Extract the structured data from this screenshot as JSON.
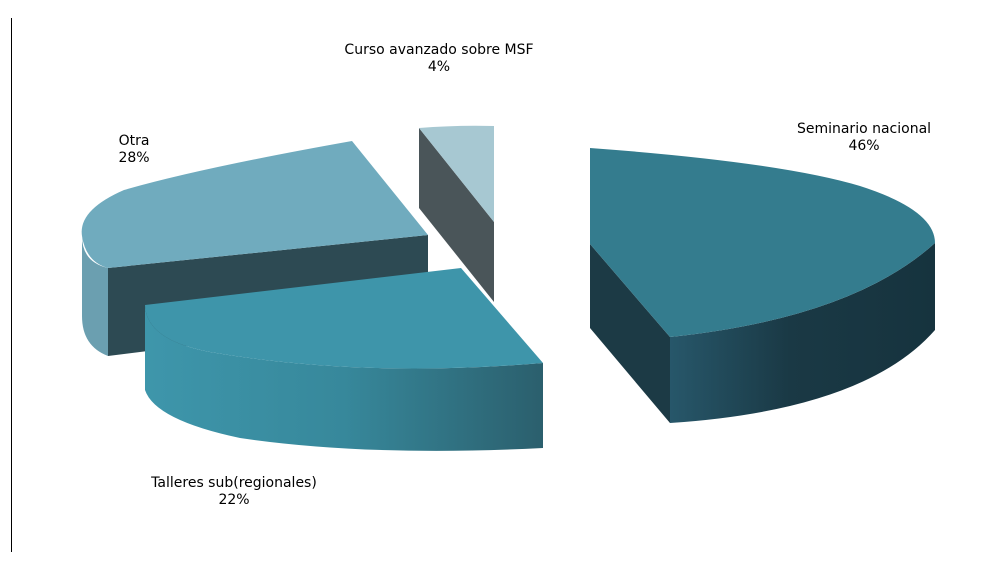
{
  "chart_data": {
    "type": "pie",
    "variant": "3d-exploded",
    "title": "",
    "slices": [
      {
        "name": "Seminario nacional",
        "value": 46,
        "label": "46%",
        "color": "#347c8e"
      },
      {
        "name": "Talleres sub(regionales)",
        "value": 22,
        "label": "22%",
        "color": "#3e95aa"
      },
      {
        "name": "Otra",
        "value": 28,
        "label": "28%",
        "color": "#70abbe"
      },
      {
        "name": "Curso avanzado sobre MSF",
        "value": 4,
        "label": "4%",
        "color": "#a7c8d2"
      }
    ]
  }
}
